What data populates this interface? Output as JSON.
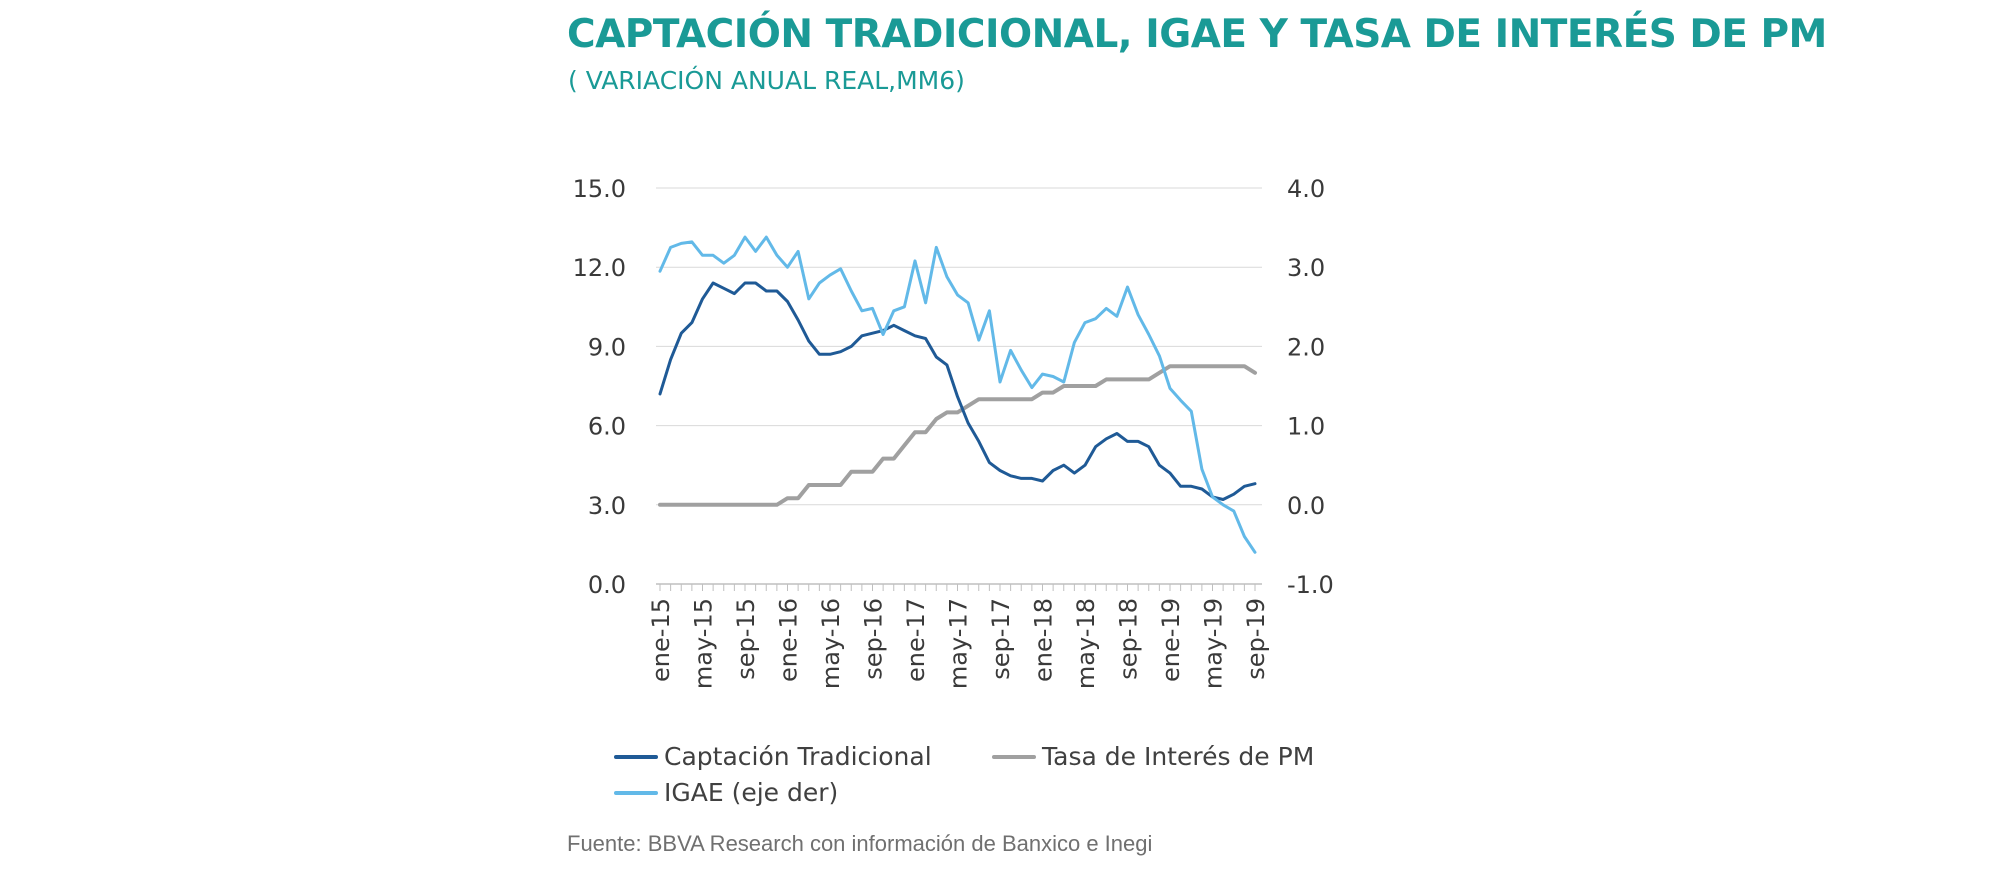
{
  "title": "CAPTACIÓN TRADICIONAL, IGAE Y TASA DE INTERÉS DE PM",
  "subtitle": "( VARIACIÓN ANUAL REAL,MM6)",
  "source": "Fuente: BBVA Research con información de Banxico e Inegi",
  "colors": {
    "title": "#1a9a96",
    "captacion": "#1f5a96",
    "tasa": "#a0a0a0",
    "igae": "#62b9e8",
    "grid": "#d9d9d9"
  },
  "chart_data": {
    "type": "line",
    "x": [
      "ene-15",
      "feb-15",
      "mar-15",
      "abr-15",
      "may-15",
      "jun-15",
      "jul-15",
      "ago-15",
      "sep-15",
      "oct-15",
      "nov-15",
      "dic-15",
      "ene-16",
      "feb-16",
      "mar-16",
      "abr-16",
      "may-16",
      "jun-16",
      "jul-16",
      "ago-16",
      "sep-16",
      "oct-16",
      "nov-16",
      "dic-16",
      "ene-17",
      "feb-17",
      "mar-17",
      "abr-17",
      "may-17",
      "jun-17",
      "jul-17",
      "ago-17",
      "sep-17",
      "oct-17",
      "nov-17",
      "dic-17",
      "ene-18",
      "feb-18",
      "mar-18",
      "abr-18",
      "may-18",
      "jun-18",
      "jul-18",
      "ago-18",
      "sep-18",
      "oct-18",
      "nov-18",
      "dic-18",
      "ene-19",
      "feb-19",
      "mar-19",
      "abr-19",
      "may-19",
      "jun-19",
      "jul-19",
      "ago-19",
      "sep-19"
    ],
    "x_tick_labels": [
      "ene-15",
      "may-15",
      "sep-15",
      "ene-16",
      "may-16",
      "sep-16",
      "ene-17",
      "may-17",
      "sep-17",
      "ene-18",
      "may-18",
      "sep-18",
      "ene-19",
      "may-19",
      "sep-19"
    ],
    "y_left": {
      "ylim": [
        0,
        15
      ],
      "ticks": [
        "0.0",
        "3.0",
        "6.0",
        "9.0",
        "12.0",
        "15.0"
      ]
    },
    "y_right": {
      "ylim": [
        -1,
        4
      ],
      "ticks": [
        "-1.0",
        "0.0",
        "1.0",
        "2.0",
        "3.0",
        "4.0"
      ]
    },
    "grid": true,
    "legend_position": "bottom",
    "series": [
      {
        "name": "Captación Tradicional",
        "axis": "left",
        "values": [
          7.2,
          8.5,
          9.5,
          9.9,
          10.8,
          11.4,
          11.2,
          11.0,
          11.4,
          11.4,
          11.1,
          11.1,
          10.7,
          10.0,
          9.2,
          8.7,
          8.7,
          8.8,
          9.0,
          9.4,
          9.5,
          9.6,
          9.8,
          9.6,
          9.4,
          9.3,
          8.6,
          8.3,
          7.1,
          6.1,
          5.4,
          4.6,
          4.3,
          4.1,
          4.0,
          4.0,
          3.9,
          4.3,
          4.5,
          4.2,
          4.5,
          5.2,
          5.5,
          5.7,
          5.4,
          5.4,
          5.2,
          4.5,
          4.2,
          3.7,
          3.7,
          3.6,
          3.3,
          3.2,
          3.4,
          3.7,
          3.8
        ]
      },
      {
        "name": "Tasa de Interés de PM",
        "axis": "left",
        "values": [
          3.0,
          3.0,
          3.0,
          3.0,
          3.0,
          3.0,
          3.0,
          3.0,
          3.0,
          3.0,
          3.0,
          3.0,
          3.25,
          3.25,
          3.75,
          3.75,
          3.75,
          3.75,
          4.25,
          4.25,
          4.25,
          4.75,
          4.75,
          5.25,
          5.75,
          5.75,
          6.25,
          6.5,
          6.5,
          6.75,
          7.0,
          7.0,
          7.0,
          7.0,
          7.0,
          7.0,
          7.25,
          7.25,
          7.5,
          7.5,
          7.5,
          7.5,
          7.75,
          7.75,
          7.75,
          7.75,
          7.75,
          8.0,
          8.25,
          8.25,
          8.25,
          8.25,
          8.25,
          8.25,
          8.25,
          8.25,
          8.0
        ]
      },
      {
        "name": "IGAE (eje der)",
        "axis": "right",
        "values": [
          2.95,
          3.25,
          3.3,
          3.32,
          3.15,
          3.15,
          3.05,
          3.15,
          3.38,
          3.2,
          3.38,
          3.15,
          3.0,
          3.2,
          2.6,
          2.8,
          2.9,
          2.98,
          2.7,
          2.45,
          2.48,
          2.15,
          2.45,
          2.5,
          3.08,
          2.55,
          3.25,
          2.88,
          2.65,
          2.55,
          2.08,
          2.45,
          1.55,
          1.95,
          1.7,
          1.48,
          1.65,
          1.62,
          1.55,
          2.05,
          2.3,
          2.35,
          2.48,
          2.38,
          2.75,
          2.4,
          2.15,
          1.88,
          1.47,
          1.32,
          1.18,
          0.45,
          0.1,
          0.0,
          -0.08,
          -0.4,
          -0.6
        ]
      }
    ]
  }
}
